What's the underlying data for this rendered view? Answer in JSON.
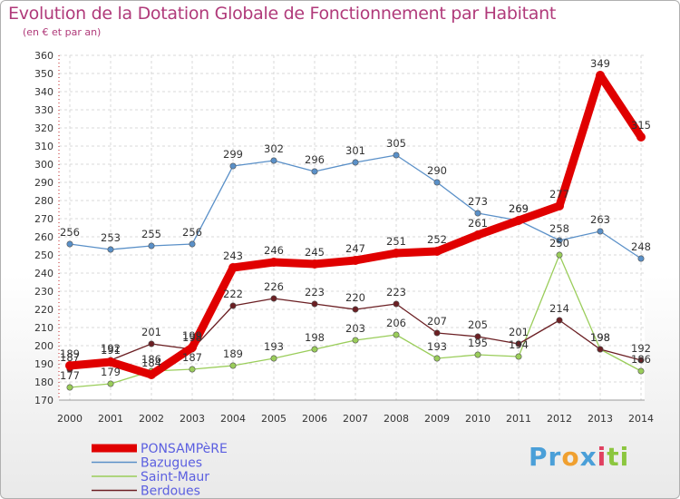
{
  "chart_data": {
    "type": "line",
    "title": "Evolution de la Dotation Globale de Fonctionnement par Habitant",
    "subtitle": "(en € et par an)",
    "xlabel": "",
    "ylabel": "",
    "ylim": [
      170,
      360
    ],
    "ytick_step": 10,
    "categories": [
      "2000",
      "2001",
      "2002",
      "2003",
      "2004",
      "2005",
      "2006",
      "2007",
      "2008",
      "2009",
      "2010",
      "2011",
      "2012",
      "2013",
      "2014"
    ],
    "grid": true,
    "legend_position": "bottom-left",
    "series": [
      {
        "name": "PONSAMPèRE",
        "color": "#e00000",
        "values": [
          189,
          191,
          184,
          199,
          243,
          246,
          245,
          247,
          251,
          252,
          261,
          269,
          277,
          349,
          315
        ]
      },
      {
        "name": "Bazugues",
        "color": "#5a90c8",
        "values": [
          256,
          253,
          255,
          256,
          299,
          302,
          296,
          301,
          305,
          290,
          273,
          269,
          258,
          263,
          248
        ]
      },
      {
        "name": "Saint-Maur",
        "color": "#9acd5a",
        "values": [
          177,
          179,
          186,
          187,
          189,
          193,
          198,
          203,
          206,
          193,
          195,
          194,
          250,
          198,
          186
        ]
      },
      {
        "name": "Berdoues",
        "color": "#6b1f23",
        "values": [
          187,
          192,
          201,
          198,
          222,
          226,
          223,
          220,
          223,
          207,
          205,
          201,
          214,
          198,
          192
        ]
      }
    ]
  },
  "logo": {
    "parts": [
      "Pr",
      "o",
      "x",
      "i",
      "ti"
    ],
    "colors": [
      "#4a9fd8",
      "#f0a030",
      "#4a9fd8",
      "#e04060",
      "#8cc63f"
    ]
  }
}
